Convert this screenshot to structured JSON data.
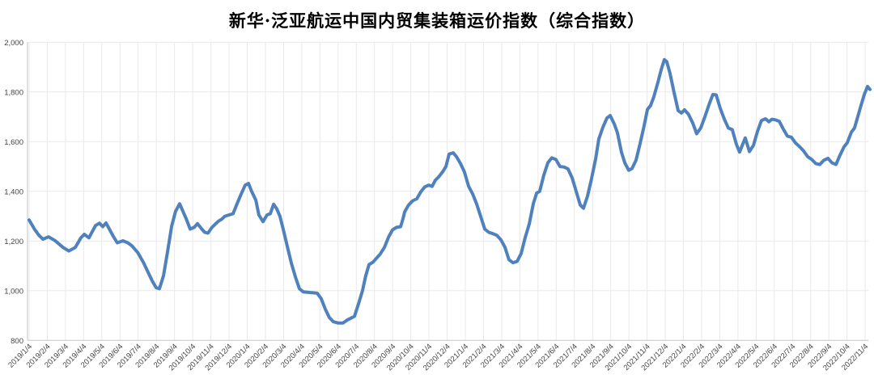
{
  "title": "新华·泛亚航运中国内贸集装箱运价指数（综合指数）",
  "colors": {
    "line": "#4F81BD",
    "gridline": "#E9E9E9",
    "axis_line": "#C6C6C6",
    "tick_text": "#444444",
    "title_text": "#000000",
    "background": "#FFFFFF"
  },
  "chart_data": {
    "type": "line",
    "title": "新华·泛亚航运中国内贸集装箱运价指数（综合指数）",
    "xlabel": "",
    "ylabel": "",
    "grid": true,
    "legend": false,
    "x_unit": "months since 2019/1/4 (weekly index readings)",
    "ylim": [
      800,
      2000
    ],
    "y_ticks": [
      {
        "v": 800,
        "label": "800"
      },
      {
        "v": 1000,
        "label": "1,000"
      },
      {
        "v": 1200,
        "label": "1,200"
      },
      {
        "v": 1400,
        "label": "1,400"
      },
      {
        "v": 1600,
        "label": "1,600"
      },
      {
        "v": 1800,
        "label": "1,800"
      },
      {
        "v": 2000,
        "label": "2,000"
      }
    ],
    "x_tick_labels": [
      "2019/1/4",
      "2019/2/4",
      "2019/3/4",
      "2019/4/4",
      "2019/5/4",
      "2019/6/4",
      "2019/7/4",
      "2019/8/4",
      "2019/9/4",
      "2019/10/4",
      "2019/11/4",
      "2019/12/4",
      "2020/1/4",
      "2020/2/4",
      "2020/3/4",
      "2020/4/4",
      "2020/5/4",
      "2020/6/4",
      "2020/7/4",
      "2020/8/4",
      "2020/9/4",
      "2020/10/4",
      "2020/11/4",
      "2020/12/4",
      "2021/1/4",
      "2021/2/4",
      "2021/3/4",
      "2021/4/4",
      "2021/5/4",
      "2021/6/4",
      "2021/7/4",
      "2021/8/4",
      "2021/9/4",
      "2021/10/4",
      "2021/11/4",
      "2021/12/4",
      "2022/1/4",
      "2022/2/4",
      "2022/3/4",
      "2022/4/4",
      "2022/5/4",
      "2022/6/4",
      "2022/7/4",
      "2022/8/4",
      "2022/9/4",
      "2022/10/4",
      "2022/11/4"
    ],
    "x_label_rotation": -45,
    "series": [
      {
        "name": "综合指数",
        "points": [
          [
            0,
            1285
          ],
          [
            0.31,
            1246
          ],
          [
            0.53,
            1224
          ],
          [
            0.76,
            1207
          ],
          [
            1.07,
            1217
          ],
          [
            1.42,
            1202
          ],
          [
            1.87,
            1174
          ],
          [
            2.18,
            1160
          ],
          [
            2.54,
            1174
          ],
          [
            2.85,
            1213
          ],
          [
            3.03,
            1227
          ],
          [
            3.29,
            1213
          ],
          [
            3.65,
            1262
          ],
          [
            3.87,
            1272
          ],
          [
            4.05,
            1258
          ],
          [
            4.23,
            1273
          ],
          [
            4.63,
            1219
          ],
          [
            4.85,
            1193
          ],
          [
            5.16,
            1201
          ],
          [
            5.43,
            1193
          ],
          [
            5.65,
            1181
          ],
          [
            5.97,
            1154
          ],
          [
            6.28,
            1115
          ],
          [
            6.54,
            1075
          ],
          [
            6.77,
            1040
          ],
          [
            6.99,
            1012
          ],
          [
            7.17,
            1008
          ],
          [
            7.39,
            1060
          ],
          [
            7.61,
            1154
          ],
          [
            7.84,
            1260
          ],
          [
            8.06,
            1320
          ],
          [
            8.28,
            1350
          ],
          [
            8.64,
            1290
          ],
          [
            8.86,
            1248
          ],
          [
            9.08,
            1255
          ],
          [
            9.26,
            1270
          ],
          [
            9.48,
            1250
          ],
          [
            9.66,
            1235
          ],
          [
            9.84,
            1232
          ],
          [
            10.06,
            1255
          ],
          [
            10.24,
            1268
          ],
          [
            10.42,
            1280
          ],
          [
            10.6,
            1288
          ],
          [
            10.77,
            1300
          ],
          [
            11,
            1305
          ],
          [
            11.22,
            1310
          ],
          [
            11.44,
            1350
          ],
          [
            11.67,
            1390
          ],
          [
            11.89,
            1425
          ],
          [
            12.07,
            1432
          ],
          [
            12.24,
            1400
          ],
          [
            12.47,
            1365
          ],
          [
            12.64,
            1305
          ],
          [
            12.87,
            1278
          ],
          [
            13.09,
            1305
          ],
          [
            13.27,
            1310
          ],
          [
            13.45,
            1348
          ],
          [
            13.62,
            1330
          ],
          [
            13.8,
            1300
          ],
          [
            13.98,
            1247
          ],
          [
            14.2,
            1180
          ],
          [
            14.43,
            1110
          ],
          [
            14.65,
            1056
          ],
          [
            14.87,
            1008
          ],
          [
            15.09,
            995
          ],
          [
            15.58,
            992
          ],
          [
            15.85,
            990
          ],
          [
            16.07,
            968
          ],
          [
            16.3,
            925
          ],
          [
            16.52,
            892
          ],
          [
            16.74,
            875
          ],
          [
            17.01,
            870
          ],
          [
            17.27,
            870
          ],
          [
            17.5,
            882
          ],
          [
            17.72,
            890
          ],
          [
            17.9,
            897
          ],
          [
            18.12,
            947
          ],
          [
            18.34,
            1000
          ],
          [
            18.52,
            1060
          ],
          [
            18.7,
            1105
          ],
          [
            18.92,
            1115
          ],
          [
            19.1,
            1130
          ],
          [
            19.32,
            1148
          ],
          [
            19.55,
            1175
          ],
          [
            19.77,
            1215
          ],
          [
            19.99,
            1245
          ],
          [
            20.21,
            1255
          ],
          [
            20.44,
            1258
          ],
          [
            20.57,
            1290
          ],
          [
            20.66,
            1317
          ],
          [
            20.88,
            1345
          ],
          [
            21.1,
            1362
          ],
          [
            21.33,
            1370
          ],
          [
            21.55,
            1398
          ],
          [
            21.77,
            1418
          ],
          [
            21.99,
            1425
          ],
          [
            22.17,
            1420
          ],
          [
            22.35,
            1445
          ],
          [
            22.53,
            1458
          ],
          [
            22.75,
            1478
          ],
          [
            22.93,
            1500
          ],
          [
            23.11,
            1550
          ],
          [
            23.33,
            1555
          ],
          [
            23.51,
            1540
          ],
          [
            23.73,
            1512
          ],
          [
            23.95,
            1478
          ],
          [
            24.18,
            1420
          ],
          [
            24.4,
            1390
          ],
          [
            24.62,
            1350
          ],
          [
            24.84,
            1300
          ],
          [
            25.07,
            1248
          ],
          [
            25.29,
            1235
          ],
          [
            25.51,
            1230
          ],
          [
            25.73,
            1223
          ],
          [
            25.96,
            1205
          ],
          [
            26.18,
            1175
          ],
          [
            26.4,
            1125
          ],
          [
            26.62,
            1113
          ],
          [
            26.85,
            1118
          ],
          [
            27.07,
            1150
          ],
          [
            27.29,
            1213
          ],
          [
            27.52,
            1270
          ],
          [
            27.74,
            1350
          ],
          [
            27.92,
            1393
          ],
          [
            28.09,
            1400
          ],
          [
            28.32,
            1465
          ],
          [
            28.54,
            1515
          ],
          [
            28.76,
            1535
          ],
          [
            28.98,
            1528
          ],
          [
            29.21,
            1500
          ],
          [
            29.43,
            1498
          ],
          [
            29.65,
            1490
          ],
          [
            29.87,
            1455
          ],
          [
            30.1,
            1400
          ],
          [
            30.32,
            1345
          ],
          [
            30.5,
            1332
          ],
          [
            30.72,
            1380
          ],
          [
            30.94,
            1450
          ],
          [
            31.17,
            1530
          ],
          [
            31.34,
            1610
          ],
          [
            31.57,
            1658
          ],
          [
            31.79,
            1695
          ],
          [
            31.97,
            1705
          ],
          [
            32.19,
            1672
          ],
          [
            32.37,
            1635
          ],
          [
            32.59,
            1558
          ],
          [
            32.77,
            1515
          ],
          [
            32.99,
            1485
          ],
          [
            33.17,
            1492
          ],
          [
            33.39,
            1525
          ],
          [
            33.61,
            1590
          ],
          [
            33.84,
            1665
          ],
          [
            34.02,
            1730
          ],
          [
            34.19,
            1745
          ],
          [
            34.37,
            1780
          ],
          [
            34.6,
            1840
          ],
          [
            34.77,
            1888
          ],
          [
            34.95,
            1930
          ],
          [
            35.08,
            1922
          ],
          [
            35.26,
            1875
          ],
          [
            35.48,
            1800
          ],
          [
            35.71,
            1725
          ],
          [
            35.89,
            1715
          ],
          [
            36.06,
            1728
          ],
          [
            36.28,
            1710
          ],
          [
            36.51,
            1675
          ],
          [
            36.73,
            1632
          ],
          [
            36.95,
            1655
          ],
          [
            37.18,
            1700
          ],
          [
            37.4,
            1748
          ],
          [
            37.62,
            1790
          ],
          [
            37.8,
            1788
          ],
          [
            38.02,
            1735
          ],
          [
            38.25,
            1690
          ],
          [
            38.47,
            1655
          ],
          [
            38.69,
            1648
          ],
          [
            38.91,
            1590
          ],
          [
            39.09,
            1558
          ],
          [
            39.4,
            1615
          ],
          [
            39.63,
            1560
          ],
          [
            39.85,
            1585
          ],
          [
            40.07,
            1640
          ],
          [
            40.29,
            1685
          ],
          [
            40.52,
            1692
          ],
          [
            40.7,
            1680
          ],
          [
            40.87,
            1690
          ],
          [
            41.05,
            1688
          ],
          [
            41.27,
            1682
          ],
          [
            41.5,
            1650
          ],
          [
            41.72,
            1622
          ],
          [
            41.94,
            1618
          ],
          [
            42.16,
            1595
          ],
          [
            42.39,
            1580
          ],
          [
            42.61,
            1563
          ],
          [
            42.83,
            1540
          ],
          [
            43.06,
            1528
          ],
          [
            43.28,
            1512
          ],
          [
            43.5,
            1508
          ],
          [
            43.72,
            1525
          ],
          [
            43.95,
            1533
          ],
          [
            44.17,
            1515
          ],
          [
            44.39,
            1508
          ],
          [
            44.61,
            1545
          ],
          [
            44.84,
            1580
          ],
          [
            45.01,
            1595
          ],
          [
            45.24,
            1638
          ],
          [
            45.41,
            1655
          ],
          [
            45.59,
            1700
          ],
          [
            45.77,
            1745
          ],
          [
            45.95,
            1790
          ],
          [
            46.13,
            1822
          ],
          [
            46.26,
            1810
          ]
        ]
      }
    ]
  }
}
